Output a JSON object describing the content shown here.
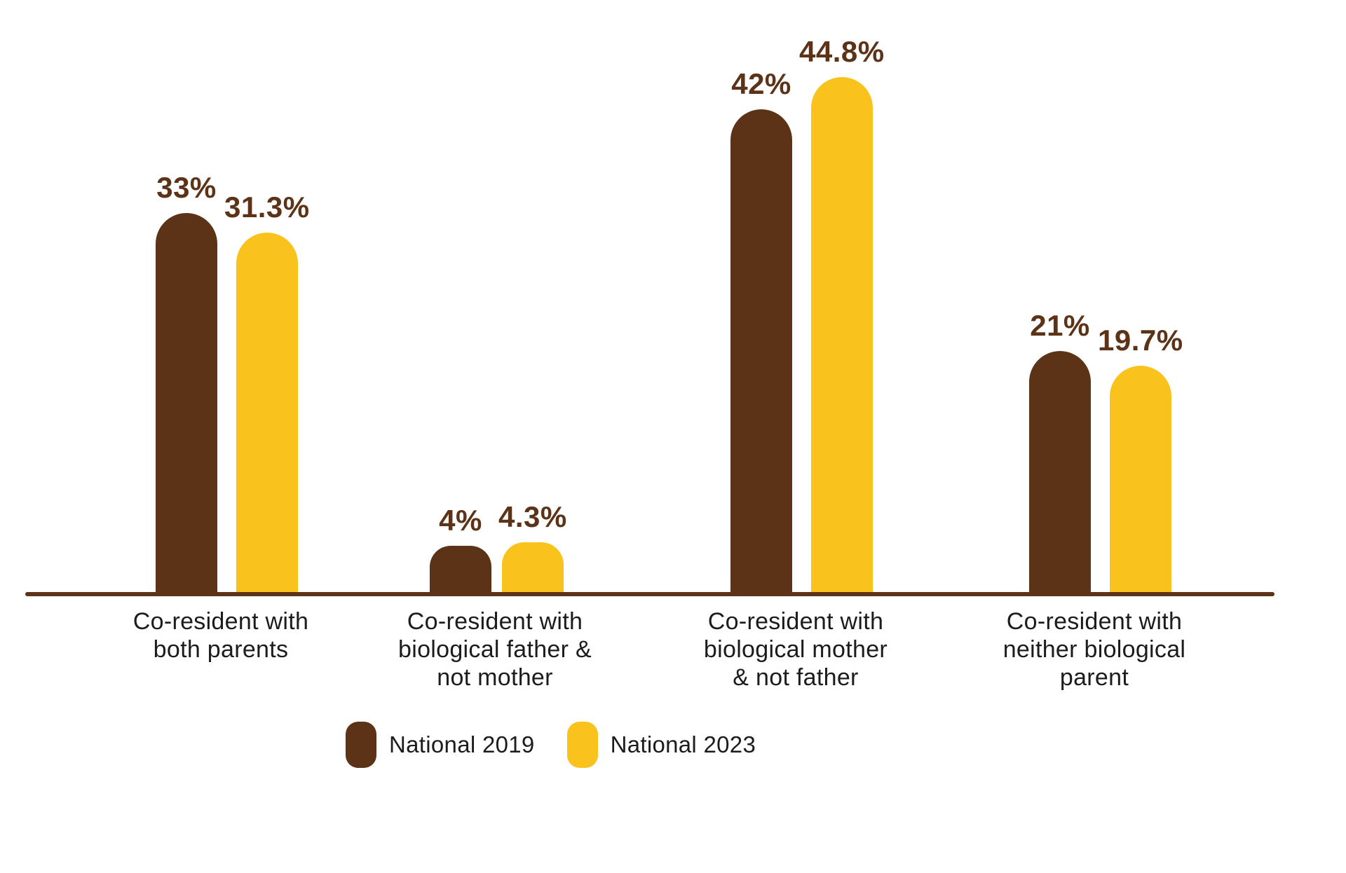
{
  "chart_data": {
    "type": "bar",
    "title": "",
    "xlabel": "",
    "ylabel": "",
    "ylim": [
      0,
      46
    ],
    "grid": false,
    "legend_position": "bottom",
    "background": "#FFFFFF",
    "axis_line_color": "#5C3317",
    "value_label_color": "#5C3317",
    "category_text_color": "#1C1C1C",
    "categories": [
      "Co-resident with both parents",
      "Co-resident with biological father & not mother",
      "Co-resident with biological mother & not father",
      "Co-resident with neither biological parent"
    ],
    "category_lines": [
      [
        "Co-resident with",
        "both parents"
      ],
      [
        "Co-resident with",
        "biological father &",
        "not mother"
      ],
      [
        "Co-resident with",
        "biological mother",
        "& not father"
      ],
      [
        "Co-resident with",
        "neither biological",
        "parent"
      ]
    ],
    "series": [
      {
        "name": "National 2019",
        "color": "#5C3317",
        "values": [
          33,
          4,
          42,
          21
        ],
        "value_labels": [
          "33%",
          "4%",
          "42%",
          "21%"
        ]
      },
      {
        "name": "National 2023",
        "color": "#F9C21D",
        "values": [
          31.3,
          4.3,
          44.8,
          19.7
        ],
        "value_labels": [
          "31.3%",
          "4.3%",
          "44.8%",
          "19.7%"
        ]
      }
    ]
  }
}
